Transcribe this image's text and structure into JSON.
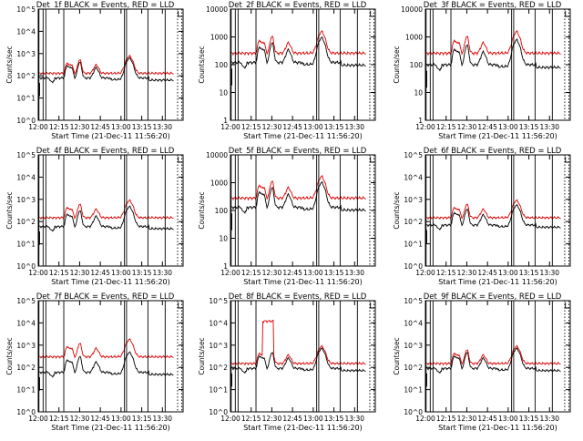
{
  "chart_data": [
    {
      "type": "line",
      "title": "Det_1f BLACK = Events, RED = LLD",
      "xlabel": "Start Time (21-Dec-11 11:56:20)",
      "ylabel": "Counts/sec",
      "x_ticks": [
        "12:00",
        "12:15",
        "12:30",
        "12:45",
        "13:00",
        "13:15",
        "13:30"
      ],
      "y_ticks": [
        "10^0",
        "10^1",
        "10^2",
        "10^3",
        "10^4",
        "10^5"
      ],
      "ylim": [
        1,
        100000
      ],
      "y_scale": "log",
      "events_base": 80,
      "lld_base": 130,
      "events_label": "BLACK = Events",
      "lld_label": "RED = LLD"
    },
    {
      "type": "line",
      "title": "Det_2f BLACK = Events, RED = LLD",
      "xlabel": "Start Time (21-Dec-11 11:56:20)",
      "ylabel": "Counts/sec",
      "x_ticks": [
        "12:00",
        "12:15",
        "12:30",
        "12:45",
        "13:00",
        "13:15",
        "13:30"
      ],
      "y_ticks": [
        "1",
        "10",
        "100",
        "1000",
        "10000"
      ],
      "ylim": [
        1,
        10000
      ],
      "y_scale": "log",
      "events_base": 120,
      "lld_base": 260,
      "events_label": "BLACK = Events",
      "lld_label": "RED = LLD"
    },
    {
      "type": "line",
      "title": "Det_3f BLACK = Events, RED = LLD",
      "xlabel": "Start Time (21-Dec-11 11:56:20)",
      "ylabel": "Counts/sec",
      "x_ticks": [
        "12:00",
        "12:15",
        "12:30",
        "12:45",
        "13:00",
        "13:15",
        "13:30"
      ],
      "y_ticks": [
        "1",
        "10",
        "100",
        "1000",
        "10000"
      ],
      "ylim": [
        1,
        10000
      ],
      "y_scale": "log",
      "events_base": 100,
      "lld_base": 260,
      "events_label": "BLACK = Events",
      "lld_label": "RED = LLD"
    },
    {
      "type": "line",
      "title": "Det_4f BLACK = Events, RED = LLD",
      "xlabel": "Start Time (21-Dec-11 11:56:20)",
      "ylabel": "Counts/sec",
      "x_ticks": [
        "12:00",
        "12:15",
        "12:30",
        "12:45",
        "13:00",
        "13:15",
        "13:30"
      ],
      "y_ticks": [
        "10^0",
        "10^1",
        "10^2",
        "10^3",
        "10^4",
        "10^5"
      ],
      "ylim": [
        1,
        100000
      ],
      "y_scale": "log",
      "events_base": 60,
      "lld_base": 150,
      "events_label": "BLACK = Events",
      "lld_label": "RED = LLD"
    },
    {
      "type": "line",
      "title": "Det_5f BLACK = Events, RED = LLD",
      "xlabel": "Start Time (21-Dec-11 11:56:20)",
      "ylabel": "Counts/sec",
      "x_ticks": [
        "12:00",
        "12:15",
        "12:30",
        "12:45",
        "13:00",
        "13:15",
        "13:30"
      ],
      "y_ticks": [
        "1",
        "10",
        "100",
        "1000",
        "10000"
      ],
      "ylim": [
        1,
        10000
      ],
      "y_scale": "log",
      "events_base": 130,
      "lld_base": 280,
      "events_label": "BLACK = Events",
      "lld_label": "RED = LLD"
    },
    {
      "type": "line",
      "title": "Det_6f BLACK = Events, RED = LLD",
      "xlabel": "Start Time (21-Dec-11 11:56:20)",
      "ylabel": "Counts/sec",
      "x_ticks": [
        "12:00",
        "12:15",
        "12:30",
        "12:45",
        "13:00",
        "13:15",
        "13:30"
      ],
      "y_ticks": [
        "10^0",
        "10^1",
        "10^2",
        "10^3",
        "10^4",
        "10^5"
      ],
      "ylim": [
        1,
        100000
      ],
      "y_scale": "log",
      "events_base": 70,
      "lld_base": 150,
      "events_label": "BLACK = Events",
      "lld_label": "RED = LLD"
    },
    {
      "type": "line",
      "title": "Det_7f BLACK = Events, RED = LLD",
      "xlabel": "Start Time (21-Dec-11 11:56:20)",
      "ylabel": "Counts/sec",
      "x_ticks": [
        "12:00",
        "12:15",
        "12:30",
        "12:45",
        "13:00",
        "13:15",
        "13:30"
      ],
      "y_ticks": [
        "10^0",
        "10^1",
        "10^2",
        "10^3",
        "10^4",
        "10^5"
      ],
      "ylim": [
        1,
        100000
      ],
      "y_scale": "log",
      "events_base": 60,
      "lld_base": 300,
      "events_label": "BLACK = Events",
      "lld_label": "RED = LLD"
    },
    {
      "type": "line",
      "title": "Det_8f BLACK = Events, RED = LLD",
      "xlabel": "Start Time (21-Dec-11 11:56:20)",
      "ylabel": "Counts/sec",
      "x_ticks": [
        "12:00",
        "12:15",
        "12:30",
        "12:45",
        "13:00",
        "13:15",
        "13:30"
      ],
      "y_ticks": [
        "10^0",
        "10^1",
        "10^2",
        "10^3",
        "10^4",
        "10^5"
      ],
      "ylim": [
        1,
        100000
      ],
      "y_scale": "log",
      "events_base": 90,
      "lld_base": 150,
      "events_label": "BLACK = Events",
      "lld_label": "RED = LLD"
    },
    {
      "type": "line",
      "title": "Det_9f BLACK = Events, RED = LLD",
      "xlabel": "Start Time (21-Dec-11 11:56:20)",
      "ylabel": "Counts/sec",
      "x_ticks": [
        "12:00",
        "12:15",
        "12:30",
        "12:45",
        "13:00",
        "13:15",
        "13:30"
      ],
      "y_ticks": [
        "10^0",
        "10^1",
        "10^2",
        "10^3",
        "10^4",
        "10^5"
      ],
      "ylim": [
        1,
        100000
      ],
      "y_scale": "log",
      "events_base": 90,
      "lld_base": 150,
      "events_label": "BLACK = Events",
      "lld_label": "RED = LLD"
    }
  ],
  "shared": {
    "x_start_min": 0,
    "x_end_min": 105,
    "solid_markers_min": [
      0.5,
      3.5,
      5.5,
      18.5,
      62.5,
      64.0,
      79.5,
      92.0
    ],
    "dotted_markers_min": [
      101.0,
      104.0
    ],
    "flare_peaks_min": [
      21,
      24,
      30,
      42,
      66
    ],
    "colors": {
      "events": "#000000",
      "lld": "#dd0000",
      "axes": "#000000"
    }
  }
}
